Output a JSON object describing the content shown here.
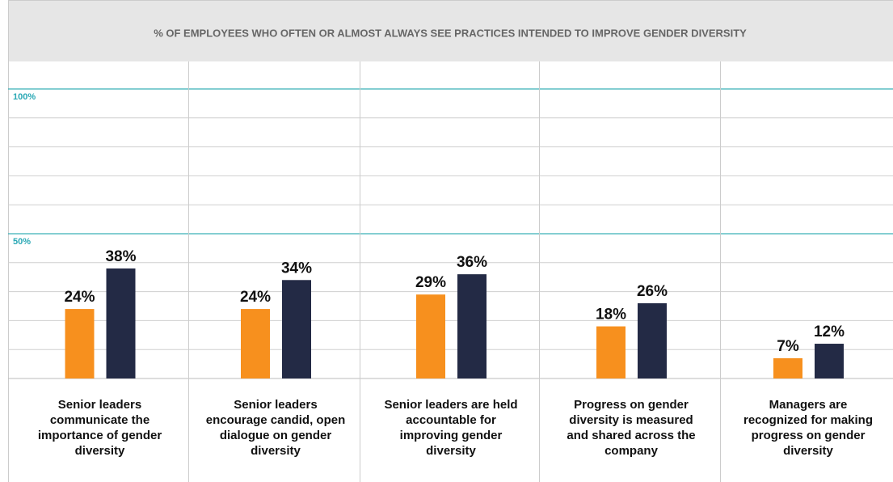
{
  "chart_data": {
    "type": "bar",
    "title": "% OF EMPLOYEES WHO OFTEN OR ALMOST ALWAYS SEE PRACTICES INTENDED TO IMPROVE GENDER DIVERSITY",
    "categories": [
      "Senior leaders communicate the importance of gender diversity",
      "Senior leaders encourage candid, open dialogue on gender diversity",
      "Senior leaders are held accountable for improving gender diversity",
      "Progress on gender diversity is measured and shared across the company",
      "Managers are recognized for making progress on gender diversity"
    ],
    "series": [
      {
        "color": "#f7901e",
        "values": [
          24,
          24,
          29,
          18,
          7
        ],
        "value_labels": [
          "24%",
          "24%",
          "29%",
          "18%",
          "7%"
        ]
      },
      {
        "color": "#232a45",
        "values": [
          38,
          34,
          36,
          26,
          12
        ],
        "value_labels": [
          "38%",
          "34%",
          "36%",
          "26%",
          "12%"
        ]
      }
    ],
    "ylim": [
      0,
      100
    ],
    "yticks": [
      {
        "value": 50,
        "label": "50%"
      },
      {
        "value": 100,
        "label": "100%"
      }
    ],
    "minor_yticks": [
      10,
      20,
      30,
      40,
      60,
      70,
      80,
      90
    ],
    "grid": true
  }
}
